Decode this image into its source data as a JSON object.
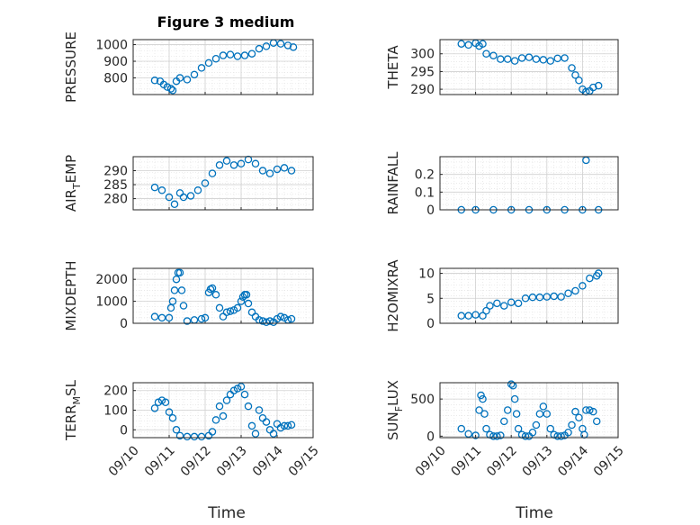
{
  "figure_title": "Figure 3 medium",
  "x_axis_label": "Time",
  "x_tick_labels": [
    "09/10",
    "09/11",
    "09/12",
    "09/13",
    "09/14",
    "09/15"
  ],
  "marker_color": "#0072BD",
  "chart_data": [
    {
      "type": "scatter",
      "title": "Figure 3 medium",
      "ylabel": "PRESSURE",
      "ylim": [
        700,
        1030
      ],
      "yticks": [
        800,
        900,
        1000
      ],
      "ytick_labels": [
        "800",
        "900",
        "1000"
      ],
      "xlim": [
        0,
        5
      ],
      "grid": true,
      "marker": "circle-open",
      "x": [
        0.6,
        0.75,
        0.85,
        0.95,
        1.05,
        1.1,
        1.2,
        1.3,
        1.5,
        1.7,
        1.9,
        2.1,
        2.3,
        2.5,
        2.7,
        2.9,
        3.1,
        3.3,
        3.5,
        3.7,
        3.9,
        4.1,
        4.3,
        4.45
      ],
      "y": [
        785,
        780,
        760,
        745,
        735,
        725,
        780,
        800,
        790,
        820,
        860,
        890,
        915,
        935,
        940,
        930,
        935,
        945,
        975,
        990,
        1010,
        1005,
        995,
        985
      ]
    },
    {
      "type": "scatter",
      "ylabel": "THETA",
      "ylim": [
        288.5,
        304
      ],
      "yticks": [
        290,
        295,
        300
      ],
      "ytick_labels": [
        "290",
        "295",
        "300"
      ],
      "xlim": [
        0,
        5
      ],
      "grid": true,
      "marker": "circle-open",
      "x": [
        0.6,
        0.8,
        1.0,
        1.1,
        1.2,
        1.3,
        1.5,
        1.7,
        1.9,
        2.1,
        2.3,
        2.5,
        2.7,
        2.9,
        3.1,
        3.3,
        3.5,
        3.7,
        3.8,
        3.9,
        4.0,
        4.1,
        4.2,
        4.3,
        4.45
      ],
      "y": [
        302.8,
        302.5,
        303,
        302.2,
        302.8,
        300,
        299.5,
        298.5,
        298.5,
        298,
        298.8,
        299,
        298.5,
        298.3,
        298,
        298.7,
        298.8,
        296,
        294,
        292.5,
        290,
        289.3,
        289.5,
        290.5,
        291
      ]
    },
    {
      "type": "scatter",
      "ylabel": "AIR_TEMP",
      "ylim": [
        276,
        295
      ],
      "yticks": [
        280,
        285,
        290
      ],
      "ytick_labels": [
        "280",
        "285",
        "290"
      ],
      "xlim": [
        0,
        5
      ],
      "grid": true,
      "marker": "circle-open",
      "x": [
        0.6,
        0.8,
        1.0,
        1.15,
        1.3,
        1.4,
        1.6,
        1.8,
        2.0,
        2.2,
        2.4,
        2.6,
        2.8,
        3.0,
        3.2,
        3.4,
        3.6,
        3.8,
        4.0,
        4.2,
        4.4
      ],
      "y": [
        284,
        283,
        280.5,
        278,
        282,
        280.5,
        281,
        283,
        285.5,
        289,
        292,
        293.5,
        292,
        292.5,
        294,
        292.5,
        290,
        289,
        290.5,
        291,
        290
      ]
    },
    {
      "type": "scatter",
      "ylabel": "RAINFALL",
      "ylim": [
        0,
        0.3
      ],
      "yticks": [
        0,
        0.1,
        0.2
      ],
      "ytick_labels": [
        "0",
        "0.1",
        "0.2"
      ],
      "xlim": [
        0,
        5
      ],
      "grid": true,
      "marker": "circle-open",
      "x": [
        0.6,
        1.0,
        1.5,
        2.0,
        2.5,
        3.0,
        3.5,
        4.0,
        4.1,
        4.45
      ],
      "y": [
        0,
        0,
        0,
        0,
        0,
        0,
        0,
        0,
        0.28,
        0
      ]
    },
    {
      "type": "scatter",
      "ylabel": "MIXDEPTH",
      "ylim": [
        0,
        2500
      ],
      "yticks": [
        0,
        1000,
        2000
      ],
      "ytick_labels": [
        "0",
        "1000",
        "2000"
      ],
      "xlim": [
        0,
        5
      ],
      "grid": true,
      "marker": "circle-open",
      "x": [
        0.6,
        0.8,
        1.0,
        1.05,
        1.1,
        1.15,
        1.2,
        1.25,
        1.3,
        1.35,
        1.4,
        1.5,
        1.7,
        1.9,
        2.0,
        2.1,
        2.15,
        2.2,
        2.3,
        2.4,
        2.5,
        2.6,
        2.7,
        2.8,
        2.9,
        3.0,
        3.05,
        3.1,
        3.15,
        3.2,
        3.3,
        3.4,
        3.5,
        3.6,
        3.7,
        3.8,
        3.9,
        4.0,
        4.1,
        4.2,
        4.3,
        4.4
      ],
      "y": [
        300,
        250,
        250,
        700,
        1000,
        1500,
        2000,
        2300,
        2300,
        1500,
        800,
        100,
        150,
        200,
        250,
        1400,
        1550,
        1600,
        1300,
        700,
        300,
        500,
        550,
        600,
        700,
        1000,
        1200,
        1300,
        1300,
        900,
        500,
        300,
        150,
        100,
        50,
        100,
        50,
        200,
        300,
        250,
        150,
        200
      ]
    },
    {
      "type": "scatter",
      "ylabel": "H2OMIXRA",
      "ylim": [
        0,
        11
      ],
      "yticks": [
        0,
        5,
        10
      ],
      "ytick_labels": [
        "0",
        "5",
        "10"
      ],
      "xlim": [
        0,
        5
      ],
      "grid": true,
      "marker": "circle-open",
      "x": [
        0.6,
        0.8,
        1.0,
        1.2,
        1.3,
        1.4,
        1.6,
        1.8,
        2.0,
        2.2,
        2.4,
        2.6,
        2.8,
        3.0,
        3.2,
        3.4,
        3.6,
        3.8,
        4.0,
        4.2,
        4.4,
        4.45
      ],
      "y": [
        1.5,
        1.5,
        1.7,
        1.5,
        2.5,
        3.5,
        4,
        3.5,
        4.2,
        4,
        5,
        5.2,
        5.2,
        5.3,
        5.4,
        5.3,
        6,
        6.5,
        7.5,
        9,
        9.5,
        10
      ]
    },
    {
      "type": "scatter",
      "ylabel": "TERR_MSL",
      "ylim": [
        -40,
        240
      ],
      "yticks": [
        0,
        100,
        200
      ],
      "ytick_labels": [
        "0",
        "100",
        "200"
      ],
      "xlim": [
        0,
        5
      ],
      "grid": true,
      "marker": "circle-open",
      "x": [
        0.6,
        0.7,
        0.8,
        0.9,
        1.0,
        1.1,
        1.2,
        1.3,
        1.5,
        1.7,
        1.9,
        2.1,
        2.2,
        2.3,
        2.4,
        2.5,
        2.6,
        2.7,
        2.8,
        2.9,
        3.0,
        3.1,
        3.2,
        3.3,
        3.4,
        3.5,
        3.6,
        3.7,
        3.8,
        3.9,
        4.0,
        4.1,
        4.2,
        4.3,
        4.4
      ],
      "y": [
        110,
        140,
        150,
        140,
        90,
        60,
        0,
        -30,
        -35,
        -35,
        -35,
        -30,
        -10,
        50,
        120,
        70,
        150,
        180,
        200,
        210,
        220,
        180,
        120,
        20,
        -20,
        100,
        60,
        40,
        0,
        -20,
        30,
        10,
        20,
        20,
        25
      ]
    },
    {
      "type": "scatter",
      "ylabel": "SUN_FLUX",
      "ylim": [
        -20,
        720
      ],
      "yticks": [
        0,
        500
      ],
      "ytick_labels": [
        "0",
        "500"
      ],
      "xlim": [
        0,
        5
      ],
      "grid": true,
      "marker": "circle-open",
      "x": [
        0.6,
        0.8,
        1.0,
        1.1,
        1.15,
        1.2,
        1.25,
        1.3,
        1.4,
        1.5,
        1.6,
        1.7,
        1.8,
        1.9,
        2.0,
        2.05,
        2.1,
        2.15,
        2.2,
        2.3,
        2.4,
        2.5,
        2.6,
        2.7,
        2.8,
        2.9,
        3.0,
        3.1,
        3.2,
        3.3,
        3.4,
        3.5,
        3.6,
        3.7,
        3.8,
        3.9,
        4.0,
        4.05,
        4.1,
        4.2,
        4.3,
        4.4
      ],
      "y": [
        100,
        30,
        10,
        350,
        550,
        500,
        300,
        100,
        20,
        0,
        0,
        10,
        200,
        350,
        700,
        680,
        500,
        300,
        100,
        20,
        0,
        0,
        50,
        150,
        300,
        400,
        300,
        100,
        20,
        0,
        0,
        10,
        50,
        150,
        330,
        250,
        100,
        20,
        350,
        350,
        330,
        200
      ]
    }
  ]
}
